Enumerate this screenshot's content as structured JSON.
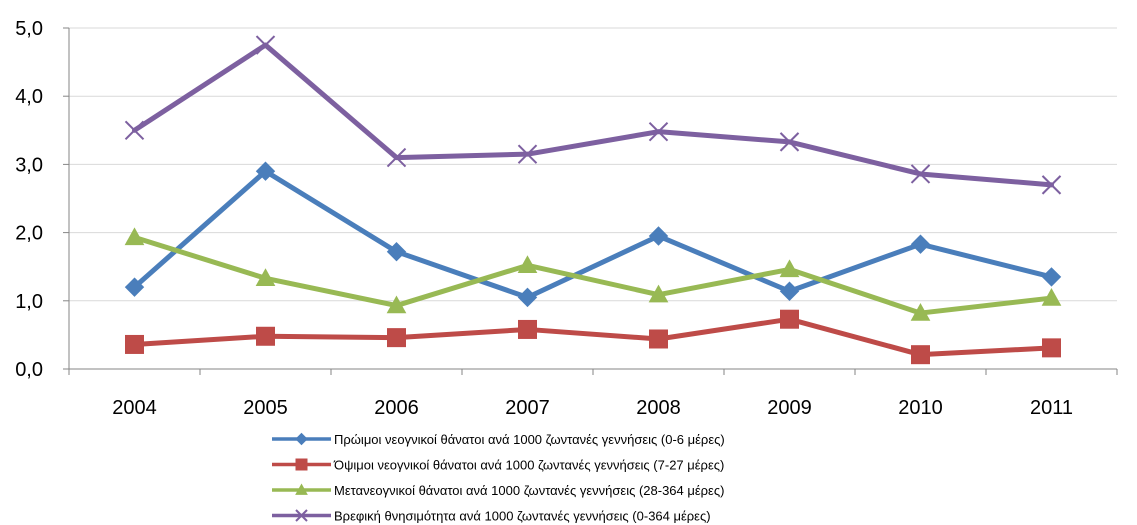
{
  "chart_data": {
    "type": "line",
    "title": "",
    "xlabel": "",
    "ylabel": "",
    "categories": [
      "2004",
      "2005",
      "2006",
      "2007",
      "2008",
      "2009",
      "2010",
      "2011"
    ],
    "y_tick_labels": [
      "0,0",
      "1,0",
      "2,0",
      "3,0",
      "4,0",
      "5,0"
    ],
    "ylim": [
      0,
      5
    ],
    "grid": true,
    "legend_position": "bottom",
    "series": [
      {
        "name": "Πρώιμοι νεογνικοί θάνατοι ανά 1000 ζωντανές γεννήσεις (0-6 μέρες)",
        "color": "#4a7ebb",
        "marker": "diamond",
        "values": [
          1.2,
          2.9,
          1.72,
          1.05,
          1.95,
          1.14,
          1.83,
          1.35
        ]
      },
      {
        "name": "Όψιμοι νεογνικοί θάνατοι ανά 1000 ζωντανές γεννήσεις (7-27 μέρες)",
        "color": "#be4b48",
        "marker": "square",
        "values": [
          0.36,
          0.48,
          0.46,
          0.58,
          0.44,
          0.73,
          0.21,
          0.31
        ]
      },
      {
        "name": "Μετανεογνικοί θάνατοι ανά 1000 ζωντανές γεννήσεις (28-364 μέρες)",
        "color": "#98b954",
        "marker": "triangle",
        "values": [
          1.93,
          1.33,
          0.93,
          1.52,
          1.09,
          1.46,
          0.82,
          1.04
        ]
      },
      {
        "name": "Βρεφική θνησιμότητα ανά 1000 ζωντανές γεννήσεις (0-364 μέρες)",
        "color": "#7d60a0",
        "marker": "x",
        "values": [
          3.5,
          4.75,
          3.1,
          3.15,
          3.48,
          3.33,
          2.86,
          2.7
        ]
      }
    ]
  }
}
